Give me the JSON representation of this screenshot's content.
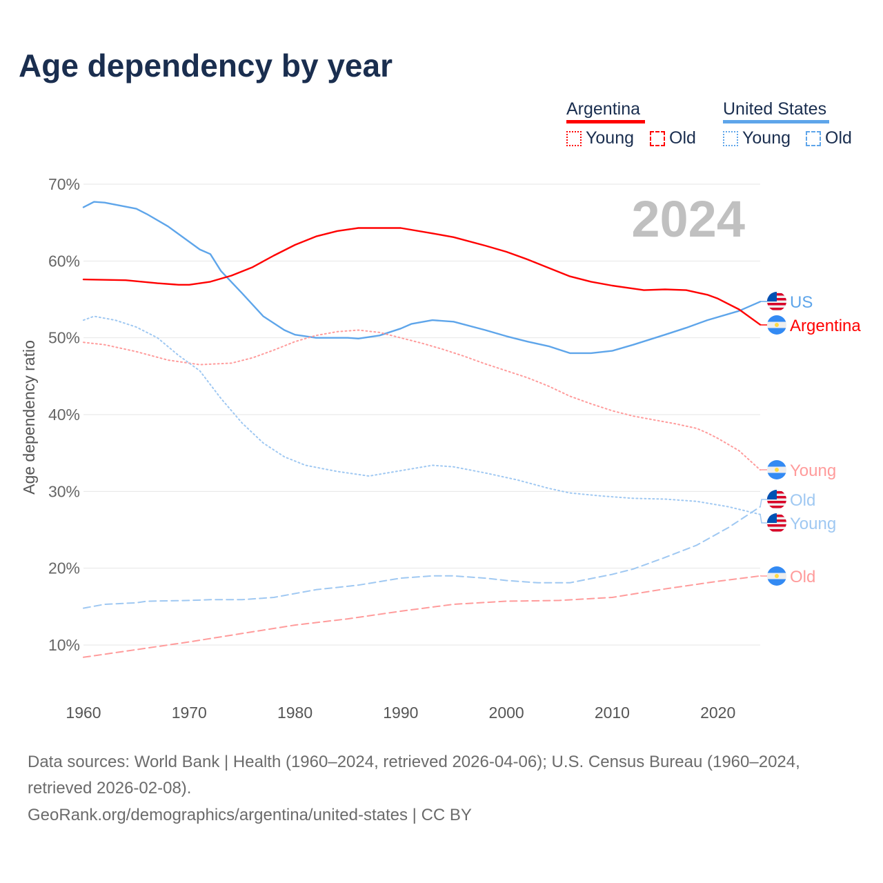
{
  "title": "Age dependency by year",
  "legend": {
    "groups": [
      {
        "name": "Argentina",
        "color": "#ff0000",
        "young": "Young",
        "old": "Old"
      },
      {
        "name": "United States",
        "color": "#5ea5ea",
        "young": "Young",
        "old": "Old"
      }
    ]
  },
  "end_labels": {
    "us_total": "US",
    "ar_total": "Argentina",
    "ar_young": "Young",
    "us_old": "Old",
    "us_young": "Young",
    "ar_old": "Old"
  },
  "footer": {
    "line1": "Data sources: World Bank | Health (1960–2024, retrieved 2026-04-06); U.S. Census Bureau (1960–2024,",
    "line2": "retrieved 2026-02-08).",
    "line3": "GeoRank.org/demographics/argentina/united-states | CC BY"
  },
  "chart_data": {
    "type": "line",
    "title": "Age dependency by year",
    "xlabel": "",
    "ylabel": "Age dependency ratio",
    "xlim": [
      1960,
      2024
    ],
    "ylim": [
      10,
      70
    ],
    "xticks": [
      "1960",
      "1970",
      "1980",
      "1990",
      "2000",
      "2010",
      "2020"
    ],
    "yticks": [
      "10%",
      "20%",
      "30%",
      "40%",
      "50%",
      "60%",
      "70%"
    ],
    "year_label": "2024",
    "grid": true,
    "series": [
      {
        "key": "us_total",
        "name": "United States",
        "color": "#5ea5ea",
        "dash": "solid",
        "points": [
          [
            1960,
            67.0
          ],
          [
            1961,
            67.7
          ],
          [
            1962,
            67.6
          ],
          [
            1965,
            66.8
          ],
          [
            1966,
            66.1
          ],
          [
            1968,
            64.5
          ],
          [
            1970,
            62.5
          ],
          [
            1971,
            61.5
          ],
          [
            1972,
            60.9
          ],
          [
            1973,
            58.7
          ],
          [
            1975,
            55.8
          ],
          [
            1977,
            52.8
          ],
          [
            1979,
            51.0
          ],
          [
            1980,
            50.4
          ],
          [
            1982,
            50.0
          ],
          [
            1985,
            50.0
          ],
          [
            1986,
            49.9
          ],
          [
            1988,
            50.3
          ],
          [
            1990,
            51.2
          ],
          [
            1991,
            51.8
          ],
          [
            1993,
            52.3
          ],
          [
            1995,
            52.1
          ],
          [
            1998,
            51.0
          ],
          [
            2000,
            50.2
          ],
          [
            2002,
            49.5
          ],
          [
            2004,
            48.9
          ],
          [
            2006,
            48.0
          ],
          [
            2008,
            48.0
          ],
          [
            2010,
            48.3
          ],
          [
            2012,
            49.1
          ],
          [
            2015,
            50.4
          ],
          [
            2017,
            51.3
          ],
          [
            2019,
            52.3
          ],
          [
            2022,
            53.5
          ],
          [
            2024,
            54.7
          ]
        ]
      },
      {
        "key": "ar_total",
        "name": "Argentina",
        "color": "#ff0000",
        "dash": "solid",
        "points": [
          [
            1960,
            57.6
          ],
          [
            1964,
            57.5
          ],
          [
            1967,
            57.1
          ],
          [
            1969,
            56.9
          ],
          [
            1970,
            56.9
          ],
          [
            1972,
            57.3
          ],
          [
            1974,
            58.1
          ],
          [
            1976,
            59.2
          ],
          [
            1978,
            60.7
          ],
          [
            1980,
            62.1
          ],
          [
            1982,
            63.2
          ],
          [
            1984,
            63.9
          ],
          [
            1986,
            64.3
          ],
          [
            1990,
            64.3
          ],
          [
            1993,
            63.6
          ],
          [
            1995,
            63.1
          ],
          [
            1998,
            62.0
          ],
          [
            2000,
            61.2
          ],
          [
            2002,
            60.2
          ],
          [
            2004,
            59.1
          ],
          [
            2006,
            58.0
          ],
          [
            2008,
            57.3
          ],
          [
            2010,
            56.8
          ],
          [
            2013,
            56.2
          ],
          [
            2015,
            56.3
          ],
          [
            2017,
            56.2
          ],
          [
            2019,
            55.6
          ],
          [
            2020,
            55.1
          ],
          [
            2022,
            53.7
          ],
          [
            2024,
            51.7
          ]
        ]
      },
      {
        "key": "ar_young",
        "name": "Argentina Young",
        "color": "#ff9b9b",
        "dash": "dotted",
        "points": [
          [
            1960,
            49.4
          ],
          [
            1962,
            49.1
          ],
          [
            1965,
            48.2
          ],
          [
            1968,
            47.1
          ],
          [
            1971,
            46.5
          ],
          [
            1974,
            46.7
          ],
          [
            1976,
            47.4
          ],
          [
            1978,
            48.4
          ],
          [
            1980,
            49.5
          ],
          [
            1982,
            50.3
          ],
          [
            1984,
            50.8
          ],
          [
            1986,
            51.0
          ],
          [
            1988,
            50.7
          ],
          [
            1990,
            50.0
          ],
          [
            1992,
            49.3
          ],
          [
            1994,
            48.5
          ],
          [
            1996,
            47.6
          ],
          [
            1998,
            46.6
          ],
          [
            2000,
            45.7
          ],
          [
            2002,
            44.8
          ],
          [
            2004,
            43.7
          ],
          [
            2006,
            42.4
          ],
          [
            2008,
            41.4
          ],
          [
            2010,
            40.5
          ],
          [
            2012,
            39.8
          ],
          [
            2014,
            39.3
          ],
          [
            2016,
            38.8
          ],
          [
            2018,
            38.2
          ],
          [
            2019,
            37.6
          ],
          [
            2020,
            36.9
          ],
          [
            2022,
            35.3
          ],
          [
            2024,
            32.8
          ]
        ]
      },
      {
        "key": "us_young",
        "name": "United States Young",
        "color": "#9fc8f2",
        "dash": "dotted",
        "points": [
          [
            1960,
            52.3
          ],
          [
            1961,
            52.8
          ],
          [
            1963,
            52.3
          ],
          [
            1965,
            51.4
          ],
          [
            1967,
            50.0
          ],
          [
            1969,
            47.7
          ],
          [
            1971,
            45.7
          ],
          [
            1973,
            42.1
          ],
          [
            1975,
            38.9
          ],
          [
            1977,
            36.3
          ],
          [
            1979,
            34.5
          ],
          [
            1981,
            33.4
          ],
          [
            1984,
            32.6
          ],
          [
            1987,
            32.0
          ],
          [
            1990,
            32.7
          ],
          [
            1993,
            33.4
          ],
          [
            1995,
            33.2
          ],
          [
            1998,
            32.4
          ],
          [
            2001,
            31.5
          ],
          [
            2004,
            30.4
          ],
          [
            2006,
            29.8
          ],
          [
            2009,
            29.4
          ],
          [
            2012,
            29.1
          ],
          [
            2015,
            29.0
          ],
          [
            2018,
            28.7
          ],
          [
            2021,
            28.0
          ],
          [
            2024,
            27.0
          ]
        ]
      },
      {
        "key": "us_old",
        "name": "United States Old",
        "color": "#9fc8f2",
        "dash": "dashed",
        "points": [
          [
            1960,
            14.8
          ],
          [
            1962,
            15.3
          ],
          [
            1965,
            15.5
          ],
          [
            1966,
            15.7
          ],
          [
            1970,
            15.8
          ],
          [
            1972,
            15.9
          ],
          [
            1975,
            15.9
          ],
          [
            1978,
            16.2
          ],
          [
            1982,
            17.2
          ],
          [
            1986,
            17.8
          ],
          [
            1990,
            18.7
          ],
          [
            1993,
            19.0
          ],
          [
            1995,
            19.0
          ],
          [
            1998,
            18.7
          ],
          [
            2000,
            18.4
          ],
          [
            2003,
            18.1
          ],
          [
            2006,
            18.1
          ],
          [
            2010,
            19.2
          ],
          [
            2012,
            19.9
          ],
          [
            2015,
            21.4
          ],
          [
            2018,
            23.0
          ],
          [
            2021,
            25.3
          ],
          [
            2024,
            28.0
          ]
        ]
      },
      {
        "key": "ar_old",
        "name": "Argentina Old",
        "color": "#ff9b9b",
        "dash": "dashed",
        "points": [
          [
            1960,
            8.4
          ],
          [
            1965,
            9.4
          ],
          [
            1970,
            10.4
          ],
          [
            1975,
            11.5
          ],
          [
            1980,
            12.6
          ],
          [
            1985,
            13.4
          ],
          [
            1990,
            14.4
          ],
          [
            1995,
            15.3
          ],
          [
            2000,
            15.7
          ],
          [
            2005,
            15.8
          ],
          [
            2010,
            16.2
          ],
          [
            2015,
            17.3
          ],
          [
            2020,
            18.3
          ],
          [
            2024,
            19.0
          ]
        ]
      }
    ]
  }
}
